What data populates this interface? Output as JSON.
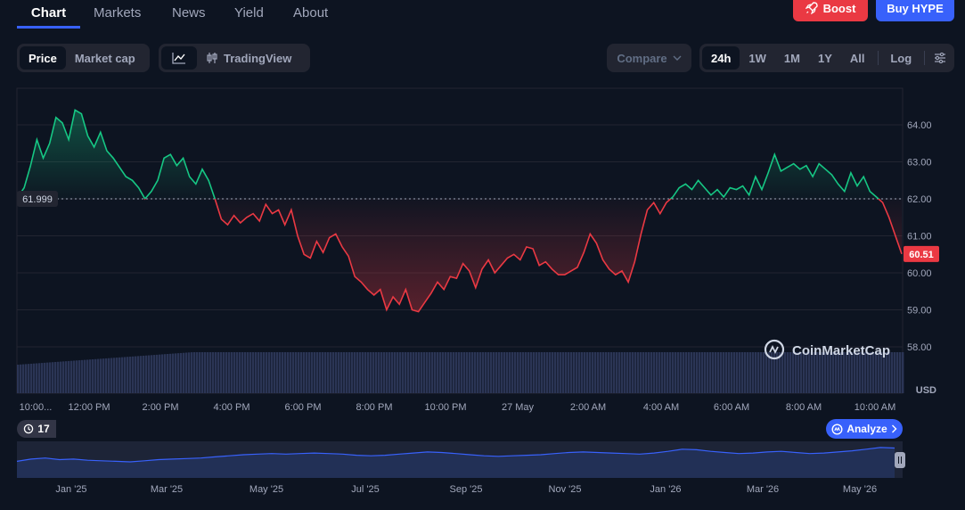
{
  "nav": {
    "tabs": [
      {
        "label": "Chart",
        "active": true
      },
      {
        "label": "Markets"
      },
      {
        "label": "News"
      },
      {
        "label": "Yield"
      },
      {
        "label": "About"
      }
    ],
    "boost_label": "Boost",
    "buy_label": "Buy HYPE"
  },
  "toolbar": {
    "price_label": "Price",
    "marketcap_label": "Market cap",
    "tradingview_label": "TradingView",
    "compare_label": "Compare",
    "ranges": [
      "24h",
      "1W",
      "1M",
      "1Y",
      "All"
    ],
    "selected_range": "24h",
    "log_label": "Log"
  },
  "chart_data": {
    "type": "area",
    "currency_label": "USD",
    "reference_price": 61.999,
    "reference_label": "61.999",
    "current_price": 60.51,
    "current_label": "60.51",
    "ylim": [
      57.5,
      64.75
    ],
    "y_ticks": [
      "58.00",
      "59.00",
      "60.00",
      "61.00",
      "62.00",
      "63.00",
      "64.00"
    ],
    "x_ticks": [
      "10:00...",
      "12:00 PM",
      "2:00 PM",
      "4:00 PM",
      "6:00 PM",
      "8:00 PM",
      "10:00 PM",
      "27 May",
      "2:00 AM",
      "4:00 AM",
      "6:00 AM",
      "8:00 AM",
      "10:00 AM"
    ],
    "watermark": "CoinMarketCap",
    "up_color": "#16c784",
    "down_color": "#ea3943",
    "series": [
      {
        "values": [
          62.05,
          62.3,
          62.9,
          63.6,
          63.1,
          63.5,
          64.2,
          64.05,
          63.6,
          64.4,
          64.3,
          63.7,
          63.4,
          63.8,
          63.3,
          63.1,
          62.85,
          62.6,
          62.5,
          62.3,
          62.0,
          62.2,
          62.5,
          63.1,
          63.2,
          62.9,
          63.1,
          62.6,
          62.4,
          62.8,
          62.5,
          62.0,
          61.45,
          61.3,
          61.55,
          61.35,
          61.5,
          61.6,
          61.4,
          61.85,
          61.6,
          61.7,
          61.3,
          61.7,
          61.0,
          60.5,
          60.4,
          60.85,
          60.55,
          60.95,
          61.05,
          60.7,
          60.45,
          59.9,
          59.75,
          59.55,
          59.4,
          59.55,
          59.0,
          59.35,
          59.15,
          59.55,
          59.0,
          58.95,
          59.2,
          59.45,
          59.75,
          59.55,
          59.9,
          59.85,
          60.25,
          60.05,
          59.6,
          60.1,
          60.35,
          60.0,
          60.2,
          60.4,
          60.5,
          60.35,
          60.7,
          60.65,
          60.2,
          60.3,
          60.1,
          59.95,
          59.95,
          60.05,
          60.15,
          60.55,
          61.05,
          60.8,
          60.35,
          60.1,
          59.95,
          60.05,
          59.75,
          60.3,
          61.05,
          61.7,
          61.9,
          61.6,
          61.9,
          62.05,
          62.3,
          62.4,
          62.25,
          62.5,
          62.3,
          62.1,
          62.25,
          62.05,
          62.3,
          62.25,
          62.35,
          62.1,
          62.6,
          62.25,
          62.7,
          63.2,
          62.75,
          62.85,
          62.95,
          62.8,
          62.9,
          62.6,
          62.95,
          62.8,
          62.65,
          62.4,
          62.2,
          62.7,
          62.35,
          62.6,
          62.2,
          62.05,
          61.9,
          61.5,
          61.0,
          60.51
        ]
      }
    ],
    "navigator": {
      "ticks": [
        "Jan '25",
        "Mar '25",
        "May '25",
        "Jul '25",
        "Sep '25",
        "Nov '25",
        "Jan '26",
        "Mar '26",
        "May '26"
      ],
      "values": [
        30,
        34,
        36,
        33,
        34,
        32,
        31,
        30,
        29,
        31,
        33,
        34,
        35,
        36,
        38,
        40,
        42,
        43,
        44,
        43,
        44,
        45,
        44,
        43,
        41,
        40,
        41,
        43,
        45,
        47,
        46,
        44,
        42,
        40,
        39,
        40,
        41,
        42,
        44,
        46,
        47,
        46,
        45,
        44,
        43,
        45,
        48,
        52,
        51,
        48,
        46,
        44,
        45,
        47,
        48,
        46,
        44,
        45,
        47,
        49,
        52,
        55,
        54
      ]
    }
  },
  "badges": {
    "alerts_count": "17",
    "analyze_label": "Analyze"
  },
  "icons": {
    "boost": "rocket-icon",
    "line_chart": "line-chart-icon",
    "candles": "candlestick-icon",
    "settings": "sliders-icon",
    "history": "history-icon",
    "analyze": "ai-icon"
  }
}
